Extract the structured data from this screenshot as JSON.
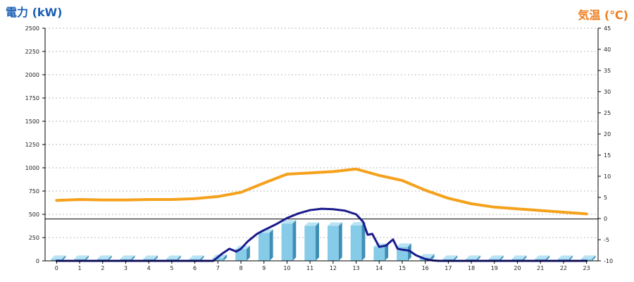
{
  "chart_data": {
    "type": "bar+line",
    "left_axis_label": "電力 (kW)",
    "right_axis_label": "気温 (℃)",
    "left_ylim": [
      0,
      2500
    ],
    "right_ylim": [
      -10,
      45
    ],
    "left_ticks": [
      0,
      250,
      500,
      750,
      1000,
      1250,
      1500,
      1750,
      2000,
      2250,
      2500
    ],
    "right_ticks": [
      -10,
      -5,
      0,
      5,
      10,
      15,
      20,
      25,
      30,
      35,
      40,
      45
    ],
    "categories": [
      "0",
      "1",
      "2",
      "3",
      "4",
      "5",
      "6",
      "7",
      "8",
      "9",
      "10",
      "11",
      "12",
      "13",
      "14",
      "15",
      "16",
      "17",
      "18",
      "19",
      "20",
      "21",
      "22",
      "23"
    ],
    "grid": true,
    "reference_line": {
      "axis": "left",
      "value": 450
    },
    "bars": {
      "axis": "left",
      "color": "#86cce8",
      "values": [
        20,
        20,
        20,
        20,
        20,
        20,
        20,
        30,
        125,
        300,
        400,
        375,
        375,
        380,
        150,
        150,
        35,
        20,
        20,
        20,
        20,
        20,
        20,
        20
      ]
    },
    "temperature": {
      "axis": "right",
      "color": "#f5a11c",
      "x": [
        0,
        1,
        2,
        3,
        4,
        5,
        6,
        7,
        8,
        9,
        10,
        11,
        12,
        13,
        14,
        15,
        16,
        17,
        18,
        19,
        20,
        21,
        22,
        23
      ],
      "values": [
        4.3,
        4.5,
        4.4,
        4.4,
        4.5,
        4.5,
        4.7,
        5.2,
        6.2,
        8.4,
        10.5,
        10.8,
        11.1,
        11.7,
        10.2,
        9.0,
        6.7,
        4.8,
        3.5,
        2.7,
        2.3,
        1.9,
        1.5,
        1.1
      ]
    },
    "power": {
      "axis": "left",
      "color": "#1a1a8c",
      "x": [
        0,
        1,
        2,
        3,
        4,
        5,
        6,
        6.8,
        7.2,
        7.5,
        7.8,
        8.0,
        8.3,
        8.7,
        9.0,
        9.5,
        10.0,
        10.5,
        11.0,
        11.5,
        12.0,
        12.5,
        13.0,
        13.3,
        13.5,
        13.7,
        14.0,
        14.3,
        14.6,
        14.8,
        15.0,
        15.3,
        15.6,
        16.0,
        16.3,
        16.6,
        17,
        18,
        19,
        20,
        21,
        22,
        23
      ],
      "values": [
        0,
        0,
        0,
        0,
        0,
        0,
        0,
        0,
        80,
        130,
        100,
        130,
        210,
        290,
        330,
        390,
        460,
        510,
        545,
        560,
        555,
        540,
        500,
        420,
        280,
        290,
        150,
        165,
        230,
        130,
        120,
        110,
        60,
        20,
        5,
        0,
        0,
        0,
        0,
        0,
        0,
        0,
        0
      ]
    }
  }
}
